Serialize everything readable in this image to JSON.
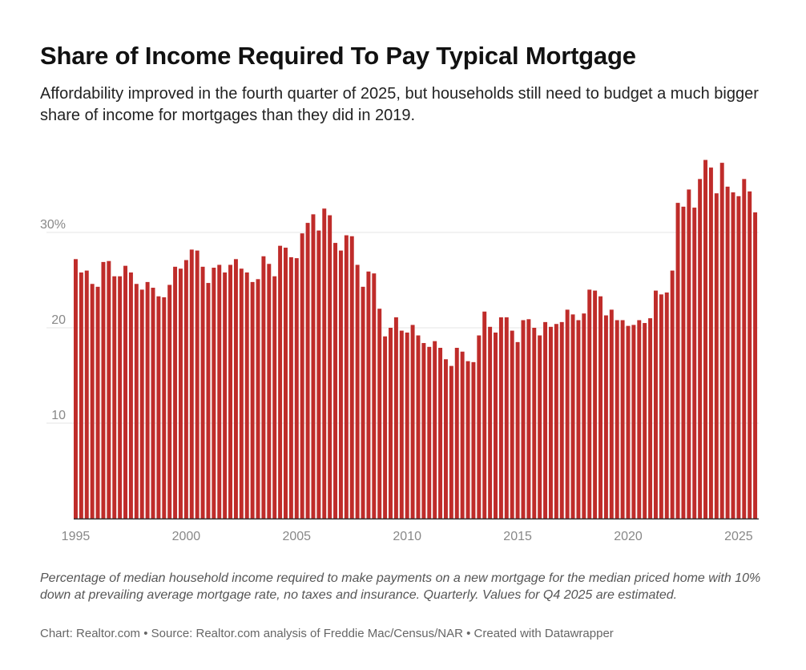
{
  "title": "Share of Income Required To Pay Typical Mortgage",
  "subtitle": "Affordability improved in the fourth quarter of 2025, but households still need to budget a much bigger share of income for mortgages than they did in 2019.",
  "notes": "Percentage of median household income required to make payments on a new mortgage for the median priced home with 10% down at prevailing average mortgage rate, no taxes and insurance. Quarterly. Values for Q4 2025 are estimated.",
  "credit": "Chart: Realtor.com • Source: Realtor.com analysis of Freddie Mac/Census/NAR • Created with Datawrapper",
  "colors": {
    "bar": "#bf2c2a",
    "grid": "#e5e5e5",
    "axis": "#333333",
    "tick_text": "#888888"
  },
  "chart_data": {
    "type": "bar",
    "title": "Share of Income Required To Pay Typical Mortgage",
    "xlabel": "",
    "ylabel": "",
    "ylim": [
      0,
      38
    ],
    "grid": true,
    "y_ticks": [
      {
        "value": 10,
        "label": "10"
      },
      {
        "value": 20,
        "label": "20"
      },
      {
        "value": 30,
        "label": "30%"
      }
    ],
    "x_ticks": [
      {
        "value": 1995,
        "label": "1995"
      },
      {
        "value": 2000,
        "label": "2000"
      },
      {
        "value": 2005,
        "label": "2005"
      },
      {
        "value": 2010,
        "label": "2010"
      },
      {
        "value": 2015,
        "label": "2015"
      },
      {
        "value": 2020,
        "label": "2020"
      },
      {
        "value": 2025,
        "label": "2025"
      }
    ],
    "start_year": 1995,
    "periods_per_year": 4,
    "series": [
      {
        "name": "Share of income",
        "values": [
          27.2,
          25.8,
          26.0,
          24.6,
          24.3,
          26.9,
          27.0,
          25.4,
          25.4,
          26.5,
          25.8,
          24.6,
          24.0,
          24.8,
          24.2,
          23.3,
          23.2,
          24.5,
          26.4,
          26.2,
          27.1,
          28.2,
          28.1,
          26.4,
          24.7,
          26.3,
          26.6,
          25.8,
          26.6,
          27.2,
          26.2,
          25.8,
          24.8,
          25.1,
          27.5,
          26.7,
          25.4,
          28.6,
          28.4,
          27.4,
          27.3,
          29.9,
          31.0,
          31.9,
          30.2,
          32.5,
          31.8,
          28.9,
          28.1,
          29.7,
          29.6,
          26.6,
          24.3,
          25.9,
          25.7,
          22.0,
          19.1,
          20.0,
          21.1,
          19.7,
          19.5,
          20.3,
          19.2,
          18.4,
          18.0,
          18.6,
          17.9,
          16.7,
          16.0,
          17.9,
          17.5,
          16.5,
          16.4,
          19.2,
          21.7,
          20.1,
          19.5,
          21.1,
          21.1,
          19.7,
          18.5,
          20.8,
          20.9,
          20.0,
          19.2,
          20.6,
          20.1,
          20.4,
          20.6,
          21.9,
          21.4,
          20.8,
          21.5,
          24.0,
          23.9,
          23.3,
          21.3,
          21.9,
          20.8,
          20.8,
          20.2,
          20.3,
          20.8,
          20.5,
          21.0,
          23.9,
          23.5,
          23.7,
          26.0,
          33.1,
          32.7,
          34.5,
          32.6,
          35.6,
          37.6,
          36.8,
          34.1,
          37.3,
          34.8,
          34.2,
          33.8,
          35.6,
          34.3,
          32.1
        ]
      }
    ]
  }
}
